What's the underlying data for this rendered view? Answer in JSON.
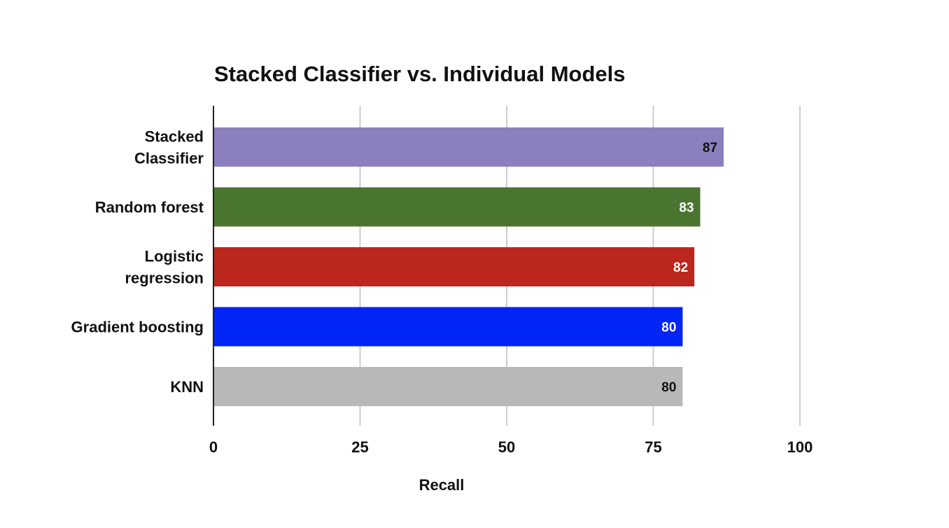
{
  "chart_data": {
    "type": "bar",
    "orientation": "horizontal",
    "title": "Stacked Classifier vs. Individual Models",
    "xlabel": "Recall",
    "ylabel": "",
    "categories": [
      [
        "Stacked",
        "Classifier"
      ],
      [
        "Random forest"
      ],
      [
        "Logistic",
        "regression"
      ],
      [
        "Gradient boosting"
      ],
      [
        "KNN"
      ]
    ],
    "values": [
      87,
      83,
      82,
      80,
      80
    ],
    "bar_colors": [
      "#8c7fbd",
      "#4a7530",
      "#bb271c",
      "#0025f5",
      "#b8b8b8"
    ],
    "value_label_colors": [
      "#111111",
      "#ffffff",
      "#ffffff",
      "#ffffff",
      "#111111"
    ],
    "xlim": [
      0,
      100
    ],
    "xticks": [
      0,
      25,
      50,
      75,
      100
    ],
    "grid": true,
    "legend": "none"
  }
}
